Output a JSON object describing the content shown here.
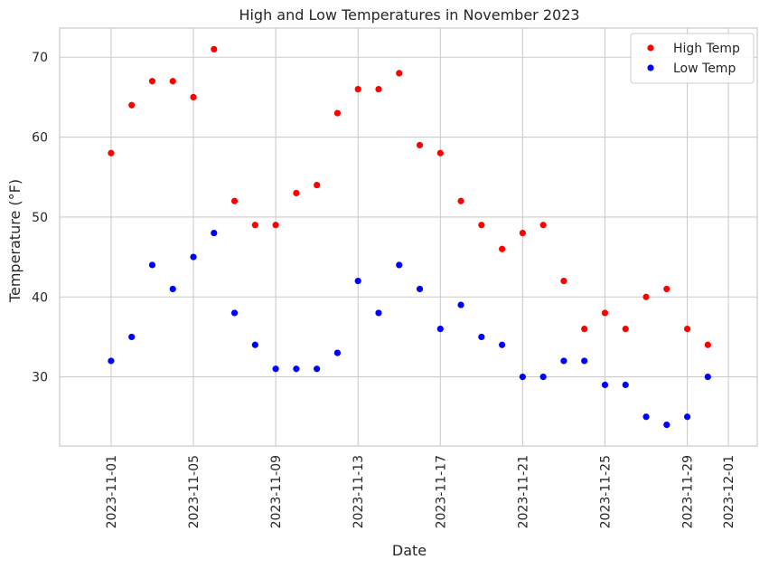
{
  "chart_data": {
    "type": "scatter",
    "title": "High and Low Temperatures in November 2023",
    "xlabel": "Date",
    "ylabel": "Temperature (°F)",
    "x": [
      "2023-11-01",
      "2023-11-02",
      "2023-11-03",
      "2023-11-04",
      "2023-11-05",
      "2023-11-06",
      "2023-11-07",
      "2023-11-08",
      "2023-11-09",
      "2023-11-10",
      "2023-11-11",
      "2023-11-12",
      "2023-11-13",
      "2023-11-14",
      "2023-11-15",
      "2023-11-16",
      "2023-11-17",
      "2023-11-18",
      "2023-11-19",
      "2023-11-20",
      "2023-11-21",
      "2023-11-22",
      "2023-11-23",
      "2023-11-24",
      "2023-11-25",
      "2023-11-26",
      "2023-11-27",
      "2023-11-28",
      "2023-11-29",
      "2023-11-30"
    ],
    "series": [
      {
        "name": "High Temp",
        "color": "#ff0000",
        "values": [
          58,
          64,
          67,
          67,
          65,
          71,
          52,
          49,
          49,
          53,
          54,
          63,
          66,
          66,
          68,
          59,
          58,
          52,
          49,
          46,
          48,
          49,
          42,
          36,
          38,
          36,
          40,
          41,
          36,
          34
        ]
      },
      {
        "name": "Low Temp",
        "color": "#0000ff",
        "values": [
          32,
          35,
          44,
          41,
          45,
          48,
          38,
          34,
          31,
          31,
          31,
          33,
          42,
          38,
          44,
          41,
          36,
          39,
          35,
          34,
          30,
          30,
          32,
          32,
          29,
          29,
          25,
          24,
          25,
          30
        ]
      }
    ],
    "xticks": [
      "2023-11-01",
      "2023-11-05",
      "2023-11-09",
      "2023-11-13",
      "2023-11-17",
      "2023-11-21",
      "2023-11-25",
      "2023-11-29",
      "2023-12-01"
    ],
    "yticks": [
      30,
      40,
      50,
      60,
      70
    ],
    "xlim": [
      "2023-10-29.5",
      "2023-12-02.4"
    ],
    "ylim": [
      21.35,
      73.65
    ],
    "grid": true,
    "legend": "top-right"
  }
}
